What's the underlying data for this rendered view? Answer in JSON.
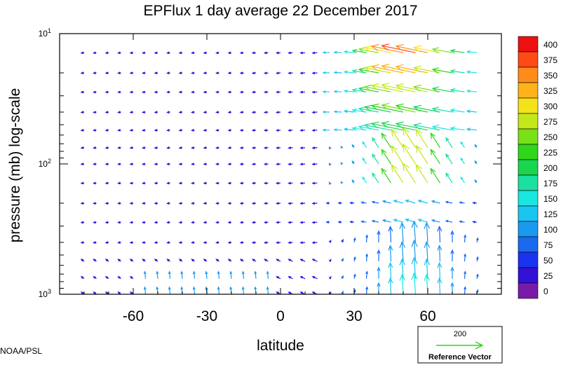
{
  "chart_data": {
    "type": "vector-field",
    "title": "EPFlux  1 day average  22 December 2017",
    "xlabel": "latitude",
    "ylabel": "pressure (mb)  log-scale",
    "x_range": [
      -90,
      90
    ],
    "y_range_mb": [
      1000,
      10
    ],
    "y_scale": "log",
    "x_ticks": [
      -60,
      -30,
      0,
      30,
      60
    ],
    "x_tick_labels": [
      "-60",
      "-30",
      "0",
      "30",
      "60"
    ],
    "y_ticks_mb": [
      1000,
      100,
      10
    ],
    "y_tick_labels": [
      {
        "base": "10",
        "exp": "3"
      },
      {
        "base": "10",
        "exp": "2"
      },
      {
        "base": "10",
        "exp": "1"
      }
    ],
    "colorbar": {
      "labels": [
        "400",
        "375",
        "350",
        "325",
        "300",
        "275",
        "250",
        "225",
        "200",
        "175",
        "150",
        "125",
        "100",
        "75",
        "50",
        "25",
        "0"
      ],
      "colors": [
        "#ee1111",
        "#ff4a16",
        "#ff8c1a",
        "#ffb31a",
        "#f5e31a",
        "#c2e81a",
        "#79e01a",
        "#2fd61a",
        "#1ad64f",
        "#1ae0a0",
        "#1ae6e0",
        "#1ac5f0",
        "#1a99f0",
        "#1a6af0",
        "#1a33f0",
        "#3311d6",
        "#7a1aa8"
      ]
    },
    "reference_vector": {
      "value": "200",
      "label": "Reference Vector"
    },
    "vectors_note": "arrows mostly small/blue in the tropics and southern hemisphere; large upward vectors 20N-75N near 1000-300 mb; strong red/orange vectors pointing left/up near 10-50 mb at 20N-80N"
  },
  "credit": "NOAA/PSL"
}
